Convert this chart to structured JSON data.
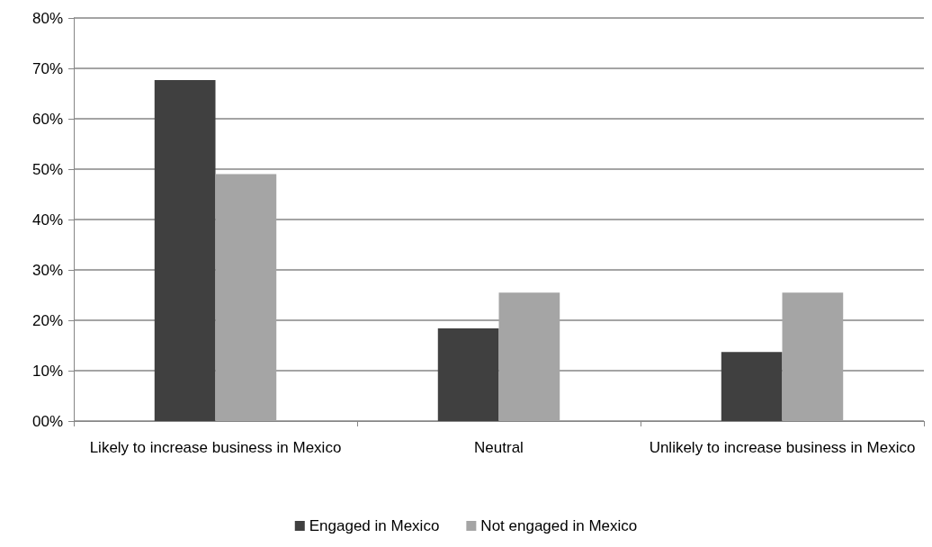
{
  "chart_data": {
    "type": "bar",
    "categories": [
      "Likely to increase business in Mexico",
      "Neutral",
      "Unlikely to increase business in Mexico"
    ],
    "series": [
      {
        "name": "Engaged in Mexico",
        "color": "#404040",
        "values": [
          67.7,
          18.4,
          13.7
        ]
      },
      {
        "name": "Not engaged in Mexico",
        "color": "#a5a5a5",
        "values": [
          49,
          25.5,
          25.5
        ]
      }
    ],
    "ylim": [
      0,
      80
    ],
    "yticks": [
      {
        "value": 0,
        "label": "00%"
      },
      {
        "value": 10,
        "label": "10%"
      },
      {
        "value": 20,
        "label": "20%"
      },
      {
        "value": 30,
        "label": "30%"
      },
      {
        "value": 40,
        "label": "40%"
      },
      {
        "value": 50,
        "label": "50%"
      },
      {
        "value": 60,
        "label": "60%"
      },
      {
        "value": 70,
        "label": "70%"
      },
      {
        "value": 80,
        "label": "80%"
      }
    ],
    "grid": true,
    "legend": "bottom"
  }
}
